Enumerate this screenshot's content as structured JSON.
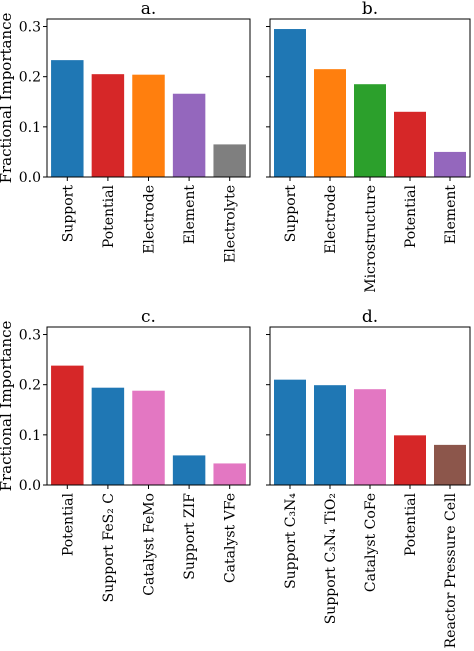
{
  "figure": {
    "ylabel": "Fractional Importance"
  },
  "chart_data": [
    {
      "type": "bar",
      "title": "a.",
      "categories": [
        "Support",
        "Potential",
        "Electrode",
        "Element",
        "Electrolyte"
      ],
      "values": [
        0.233,
        0.205,
        0.204,
        0.166,
        0.065
      ],
      "colors": [
        "#1f77b4",
        "#d62728",
        "#ff7f0e",
        "#9467bd",
        "#7f7f7f"
      ],
      "ylim": [
        0,
        0.315
      ],
      "yticks": [
        "0.0",
        "0.1",
        "0.2",
        "0.3"
      ],
      "ylabel": "Fractional Importance",
      "show_yticks": true
    },
    {
      "type": "bar",
      "title": "b.",
      "categories": [
        "Support",
        "Electrode",
        "Microstructure",
        "Potential",
        "Element"
      ],
      "values": [
        0.295,
        0.215,
        0.185,
        0.13,
        0.05
      ],
      "colors": [
        "#1f77b4",
        "#ff7f0e",
        "#2ca02c",
        "#d62728",
        "#9467bd"
      ],
      "ylim": [
        0,
        0.315
      ],
      "yticks": [
        "0.0",
        "0.1",
        "0.2",
        "0.3"
      ],
      "ylabel": "",
      "show_yticks": false
    },
    {
      "type": "bar",
      "title": "c.",
      "categories": [
        "Potential",
        "Support FeS₂ C",
        "Catalyst FeMo",
        "Support ZIF",
        "Catalyst VFe"
      ],
      "values": [
        0.238,
        0.194,
        0.188,
        0.059,
        0.043
      ],
      "colors": [
        "#d62728",
        "#1f77b4",
        "#e377c2",
        "#1f77b4",
        "#e377c2"
      ],
      "ylim": [
        0,
        0.315
      ],
      "yticks": [
        "0.0",
        "0.1",
        "0.2",
        "0.3"
      ],
      "ylabel": "Fractional Importance",
      "show_yticks": true
    },
    {
      "type": "bar",
      "title": "d.",
      "categories": [
        "Support C₃N₄",
        "Support C₃N₄ TiO₂",
        "Catalyst CoFe",
        "Potential",
        "Reactor Pressure Cell"
      ],
      "values": [
        0.21,
        0.199,
        0.191,
        0.099,
        0.08
      ],
      "colors": [
        "#1f77b4",
        "#1f77b4",
        "#e377c2",
        "#d62728",
        "#8c564b"
      ],
      "ylim": [
        0,
        0.315
      ],
      "yticks": [
        "0.0",
        "0.1",
        "0.2",
        "0.3"
      ],
      "ylabel": "",
      "show_yticks": false
    }
  ]
}
